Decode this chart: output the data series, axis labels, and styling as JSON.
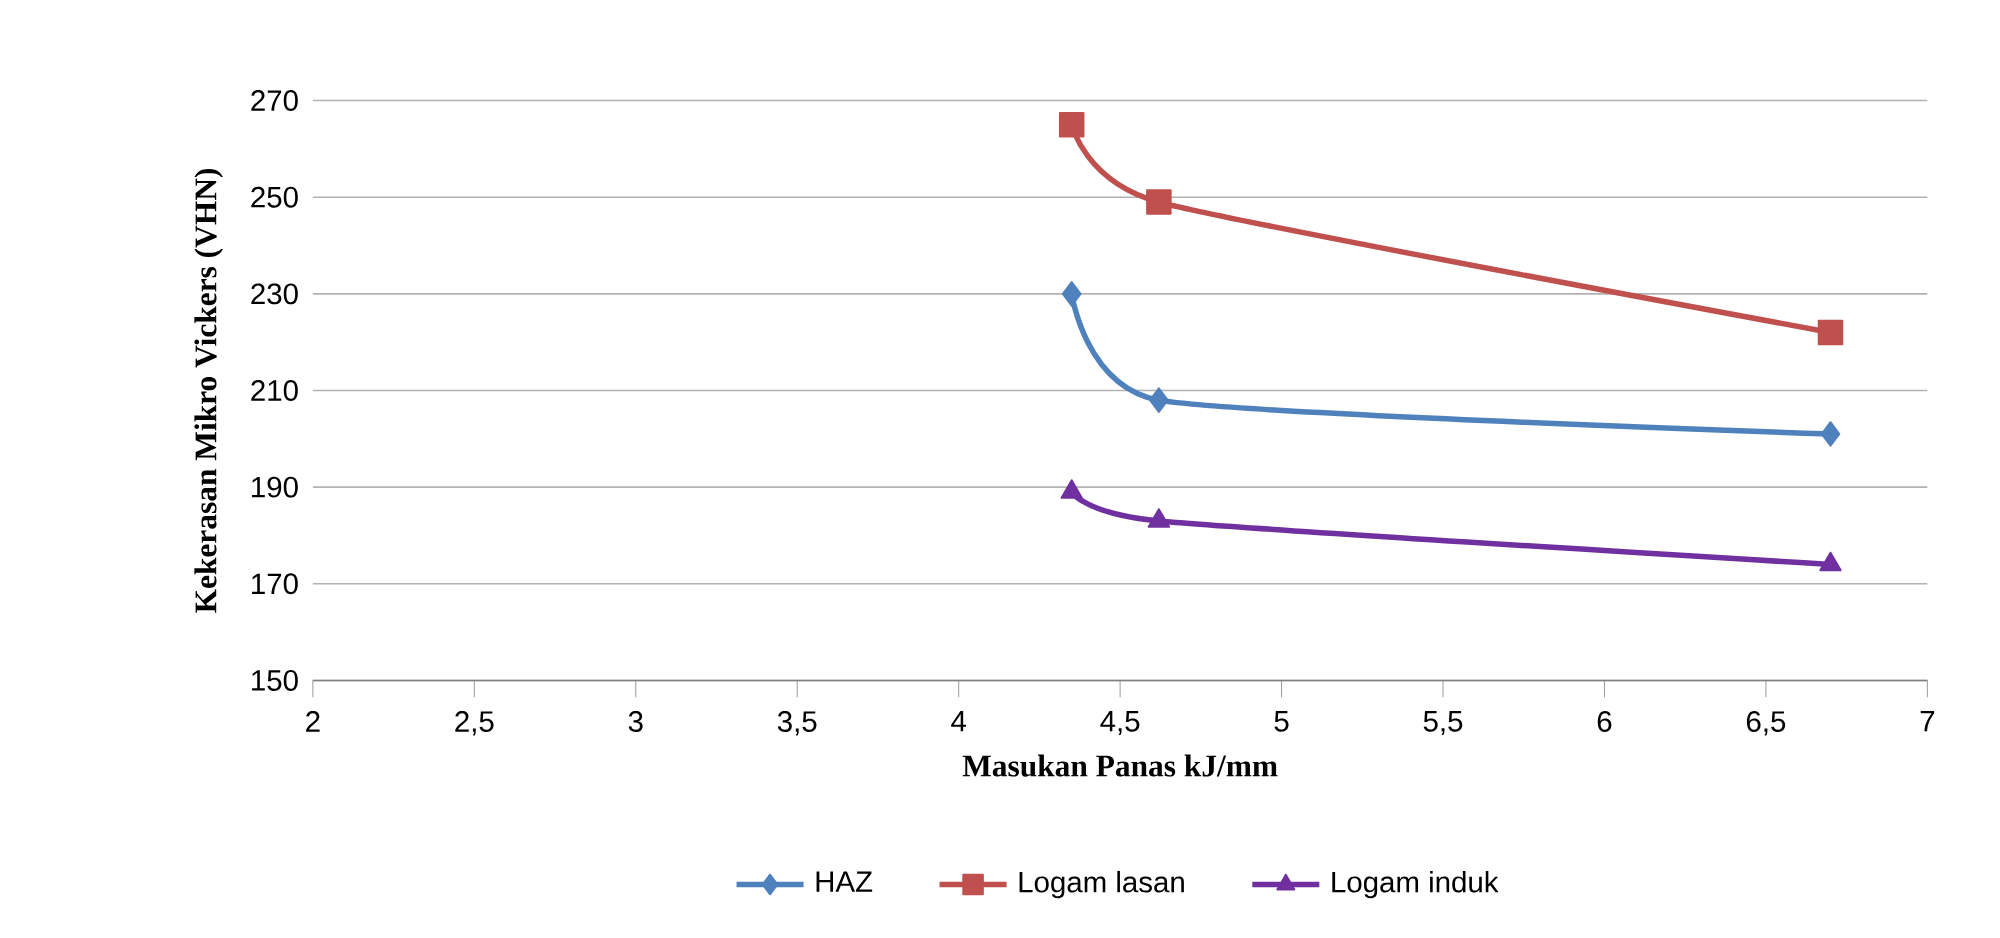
{
  "chart_data": {
    "type": "line",
    "xlabel": "Masukan Panas kJ/mm",
    "ylabel": "Kekerasan Mikro Vickers (VHN)",
    "xlim": [
      2,
      7
    ],
    "xticks": [
      2,
      {
        "value": 2.5,
        "label": "2,5"
      },
      3,
      {
        "value": 3.5,
        "label": "3,5"
      },
      4,
      {
        "value": 4.5,
        "label": "4,5"
      },
      5,
      {
        "value": 5.5,
        "label": "5,5"
      },
      6,
      {
        "value": 6.5,
        "label": "6,5"
      },
      7
    ],
    "ylim": [
      150,
      270
    ],
    "yticks": [
      150,
      170,
      190,
      210,
      230,
      250,
      270
    ],
    "grid": "y",
    "legend": "bottom",
    "line_style": "solid",
    "series": [
      {
        "name": "HAZ",
        "color": "#4f81bd",
        "marker": "diamond",
        "x": [
          4.35,
          4.62,
          6.7
        ],
        "values": [
          230,
          208,
          201
        ]
      },
      {
        "name": "Logam lasan",
        "color": "#c0504d",
        "marker": "square",
        "x": [
          4.35,
          4.62,
          6.7
        ],
        "values": [
          265,
          249,
          222
        ]
      },
      {
        "name": "Logam induk",
        "color": "#7030a0",
        "marker": "triangle",
        "x": [
          4.35,
          4.62,
          6.7
        ],
        "values": [
          189,
          183,
          174
        ]
      }
    ]
  }
}
